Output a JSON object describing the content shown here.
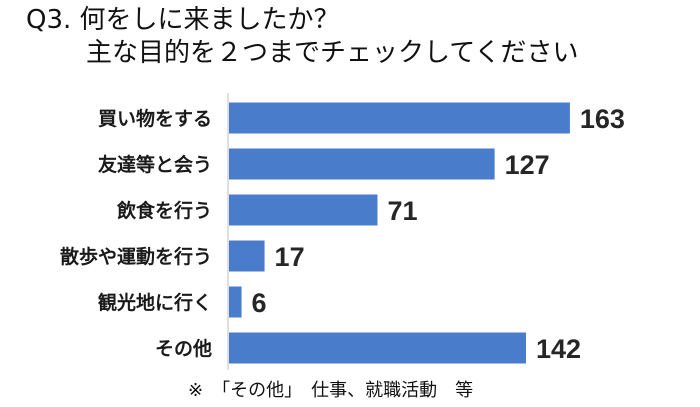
{
  "chart_data": {
    "type": "bar",
    "orientation": "horizontal",
    "title_lines": [
      "Q3. 何をしに来ましたか？",
      "主な目的を２つまでチェックしてください"
    ],
    "categories": [
      "買い物をする",
      "友達等と会う",
      "飲食を行う",
      "散歩や運動を行う",
      "観光地に行く",
      "その他"
    ],
    "values": [
      163,
      127,
      71,
      17,
      6,
      142
    ],
    "xlim": [
      0,
      175
    ],
    "bar_color": "#4a7ccc",
    "grid": false,
    "legend": "none"
  },
  "footnote": "※　「その他」　仕事、就職活動　等"
}
